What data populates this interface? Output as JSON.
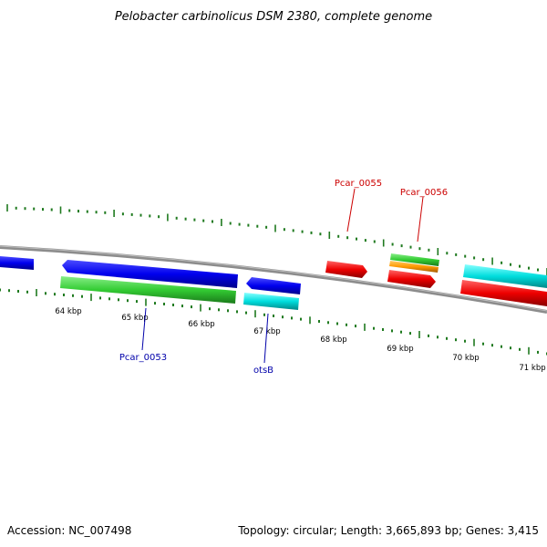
{
  "title": "Pelobacter carbinolicus DSM 2380, complete genome",
  "footer": {
    "accession": "Accession: NC_007498",
    "summary": "Topology: circular; Length: 3,665,893 bp; Genes: 3,415"
  },
  "scale": {
    "tick_labels": [
      "64 kbp",
      "65 kbp",
      "66 kbp",
      "67 kbp",
      "68 kbp",
      "69 kbp",
      "70 kbp",
      "71 kbp"
    ]
  },
  "gene_labels": {
    "top": [
      {
        "name": "Pcar_0055",
        "color": "#cc0000"
      },
      {
        "name": "Pcar_0056",
        "color": "#cc0000"
      }
    ],
    "bottom": [
      {
        "name": "Pcar_0053",
        "color": "#0000aa"
      },
      {
        "name": "otsB",
        "color": "#0000aa"
      }
    ]
  },
  "colors": {
    "backbone": "#8c8c8c",
    "tick": "#1f7a1f",
    "gene_blue": "#0000ee",
    "gene_green": "#33cc33",
    "gene_cyan": "#00dddd",
    "gene_red": "#ee0000",
    "gene_orange": "#ff9900"
  }
}
